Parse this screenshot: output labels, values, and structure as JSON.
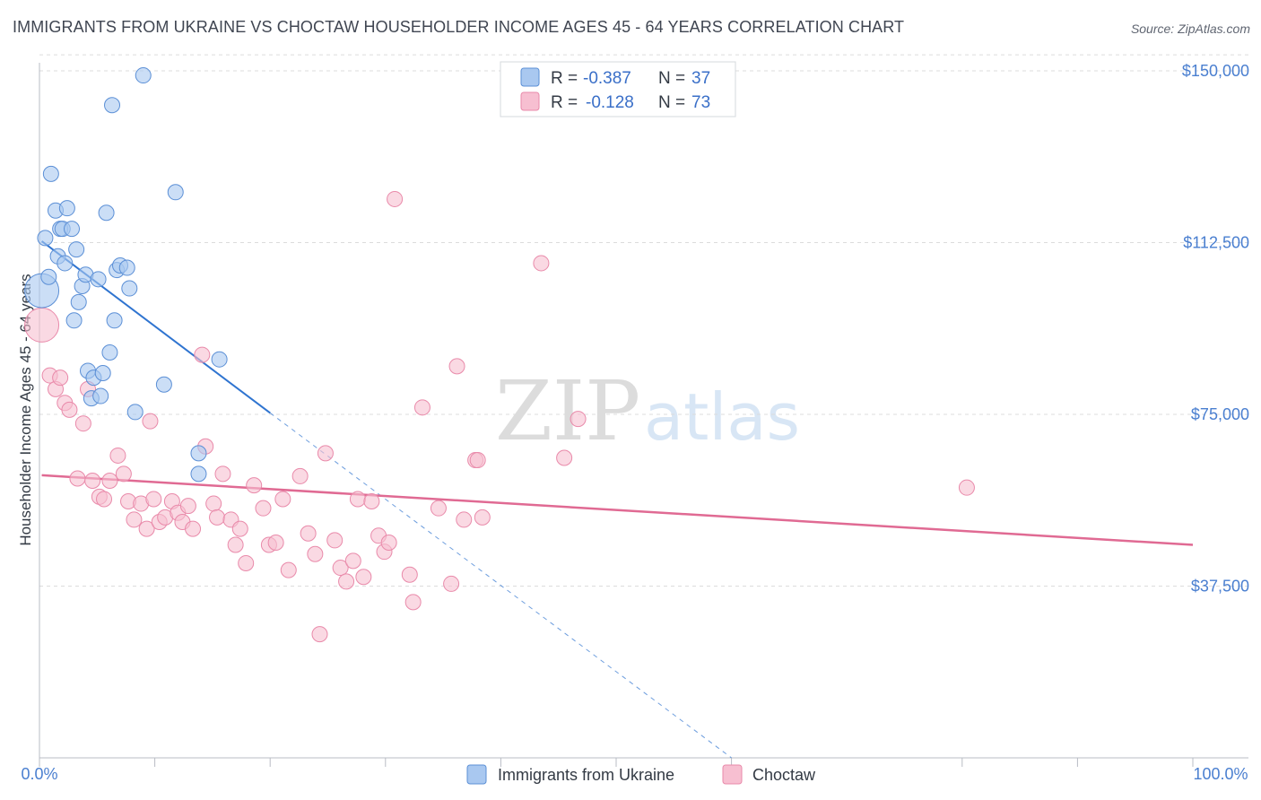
{
  "header": {
    "title": "IMMIGRANTS FROM UKRAINE VS CHOCTAW HOUSEHOLDER INCOME AGES 45 - 64 YEARS CORRELATION CHART",
    "source": "Source: ZipAtlas.com"
  },
  "watermark": {
    "zip": "ZIP",
    "atlas": "atlas"
  },
  "legend": {
    "r_label": "R =",
    "n_label": "N =",
    "series1": {
      "r": "-0.387",
      "n": "37"
    },
    "series2": {
      "r": "-0.128",
      "n": "73"
    }
  },
  "colors": {
    "ukraine_fill": "#a9c8f0",
    "ukraine_stroke": "#5b8fd6",
    "ukraine_line": "#2f74d0",
    "choctaw_fill": "#f7bfd1",
    "choctaw_stroke": "#e98aaa",
    "choctaw_line": "#e06a93",
    "grid": "#dcdcdc",
    "axis": "#b8bcc4"
  },
  "chart_data": {
    "type": "scatter",
    "title": "IMMIGRANTS FROM UKRAINE VS CHOCTAW HOUSEHOLDER INCOME AGES 45 - 64 YEARS CORRELATION CHART",
    "xlabel": "",
    "ylabel": "Householder Income Ages 45 - 64 years",
    "xlim": [
      0,
      100
    ],
    "ylim": [
      0,
      157000
    ],
    "x_tick_labels": [
      "0.0%",
      "100.0%"
    ],
    "y_ticks": [
      37500,
      75000,
      112500,
      150000
    ],
    "y_tick_labels": [
      "$37,500",
      "$75,000",
      "$112,500",
      "$150,000"
    ],
    "grid": true,
    "legend_position": "top-center",
    "series": [
      {
        "name": "Immigrants from Ukraine",
        "R": -0.387,
        "N": 37,
        "trend": {
          "x": [
            0.2,
            20
          ],
          "y": [
            112800,
            75300
          ]
        },
        "trend_extension": {
          "x": [
            20,
            60
          ],
          "y": [
            75300,
            0
          ]
        },
        "points": [
          {
            "x": 0.2,
            "y": 102000,
            "big": true
          },
          {
            "x": 0.5,
            "y": 113500
          },
          {
            "x": 0.8,
            "y": 105000
          },
          {
            "x": 1.0,
            "y": 127500
          },
          {
            "x": 1.4,
            "y": 119500
          },
          {
            "x": 1.6,
            "y": 109500
          },
          {
            "x": 1.8,
            "y": 115500
          },
          {
            "x": 2.0,
            "y": 115500
          },
          {
            "x": 2.2,
            "y": 108000
          },
          {
            "x": 2.4,
            "y": 120000
          },
          {
            "x": 2.8,
            "y": 115500
          },
          {
            "x": 3.0,
            "y": 95500
          },
          {
            "x": 3.2,
            "y": 111000
          },
          {
            "x": 3.4,
            "y": 99500
          },
          {
            "x": 3.7,
            "y": 103000
          },
          {
            "x": 4.0,
            "y": 105500
          },
          {
            "x": 4.2,
            "y": 84500
          },
          {
            "x": 4.5,
            "y": 78500
          },
          {
            "x": 4.7,
            "y": 83000
          },
          {
            "x": 5.1,
            "y": 104500
          },
          {
            "x": 5.3,
            "y": 79000
          },
          {
            "x": 5.5,
            "y": 84000
          },
          {
            "x": 5.8,
            "y": 119000
          },
          {
            "x": 6.1,
            "y": 88500
          },
          {
            "x": 6.3,
            "y": 142500
          },
          {
            "x": 6.5,
            "y": 95500
          },
          {
            "x": 6.7,
            "y": 106500
          },
          {
            "x": 7.0,
            "y": 107500
          },
          {
            "x": 7.6,
            "y": 107000
          },
          {
            "x": 7.8,
            "y": 102500
          },
          {
            "x": 8.3,
            "y": 75500
          },
          {
            "x": 9.0,
            "y": 149000
          },
          {
            "x": 10.8,
            "y": 81500
          },
          {
            "x": 11.8,
            "y": 123500
          },
          {
            "x": 13.8,
            "y": 66500
          },
          {
            "x": 13.8,
            "y": 62000
          },
          {
            "x": 15.6,
            "y": 87000
          }
        ]
      },
      {
        "name": "Choctaw",
        "R": -0.128,
        "N": 73,
        "trend": {
          "x": [
            0.2,
            100
          ],
          "y": [
            61700,
            46500
          ]
        },
        "points": [
          {
            "x": 0.2,
            "y": 94500,
            "big": true
          },
          {
            "x": 0.9,
            "y": 83500
          },
          {
            "x": 1.4,
            "y": 80500
          },
          {
            "x": 1.8,
            "y": 83000
          },
          {
            "x": 2.2,
            "y": 77500
          },
          {
            "x": 2.6,
            "y": 76000
          },
          {
            "x": 3.3,
            "y": 61000
          },
          {
            "x": 3.8,
            "y": 73000
          },
          {
            "x": 4.2,
            "y": 80500
          },
          {
            "x": 4.6,
            "y": 60500
          },
          {
            "x": 5.2,
            "y": 57000
          },
          {
            "x": 5.6,
            "y": 56500
          },
          {
            "x": 6.1,
            "y": 60500
          },
          {
            "x": 6.8,
            "y": 66000
          },
          {
            "x": 7.3,
            "y": 62000
          },
          {
            "x": 7.7,
            "y": 56000
          },
          {
            "x": 8.2,
            "y": 52000
          },
          {
            "x": 8.8,
            "y": 55500
          },
          {
            "x": 9.3,
            "y": 50000
          },
          {
            "x": 9.6,
            "y": 73500
          },
          {
            "x": 9.9,
            "y": 56500
          },
          {
            "x": 10.4,
            "y": 51500
          },
          {
            "x": 10.9,
            "y": 52500
          },
          {
            "x": 11.5,
            "y": 56000
          },
          {
            "x": 12.0,
            "y": 53500
          },
          {
            "x": 12.4,
            "y": 51500
          },
          {
            "x": 12.9,
            "y": 55000
          },
          {
            "x": 13.3,
            "y": 50000
          },
          {
            "x": 14.1,
            "y": 88000
          },
          {
            "x": 14.4,
            "y": 68000
          },
          {
            "x": 15.1,
            "y": 55500
          },
          {
            "x": 15.4,
            "y": 52500
          },
          {
            "x": 15.9,
            "y": 62000
          },
          {
            "x": 16.6,
            "y": 52000
          },
          {
            "x": 17.0,
            "y": 46500
          },
          {
            "x": 17.4,
            "y": 50000
          },
          {
            "x": 17.9,
            "y": 42500
          },
          {
            "x": 18.6,
            "y": 59500
          },
          {
            "x": 19.4,
            "y": 54500
          },
          {
            "x": 19.9,
            "y": 46500
          },
          {
            "x": 20.5,
            "y": 47000
          },
          {
            "x": 21.1,
            "y": 56500
          },
          {
            "x": 21.6,
            "y": 41000
          },
          {
            "x": 22.6,
            "y": 61500
          },
          {
            "x": 23.3,
            "y": 49000
          },
          {
            "x": 23.9,
            "y": 44500
          },
          {
            "x": 24.3,
            "y": 27000
          },
          {
            "x": 24.8,
            "y": 66500
          },
          {
            "x": 25.6,
            "y": 47500
          },
          {
            "x": 26.1,
            "y": 41500
          },
          {
            "x": 26.6,
            "y": 38500
          },
          {
            "x": 27.2,
            "y": 43000
          },
          {
            "x": 27.6,
            "y": 56500
          },
          {
            "x": 28.1,
            "y": 39500
          },
          {
            "x": 28.8,
            "y": 56000
          },
          {
            "x": 29.4,
            "y": 48500
          },
          {
            "x": 29.9,
            "y": 45000
          },
          {
            "x": 30.3,
            "y": 47000
          },
          {
            "x": 30.8,
            "y": 122000
          },
          {
            "x": 32.1,
            "y": 40000
          },
          {
            "x": 32.4,
            "y": 34000
          },
          {
            "x": 33.2,
            "y": 76500
          },
          {
            "x": 34.6,
            "y": 54500
          },
          {
            "x": 35.7,
            "y": 38000
          },
          {
            "x": 36.2,
            "y": 85500
          },
          {
            "x": 36.8,
            "y": 52000
          },
          {
            "x": 37.8,
            "y": 65000
          },
          {
            "x": 38.4,
            "y": 52500
          },
          {
            "x": 43.5,
            "y": 108000
          },
          {
            "x": 45.5,
            "y": 65500
          },
          {
            "x": 46.7,
            "y": 74000
          },
          {
            "x": 80.4,
            "y": 59000
          },
          {
            "x": 38.0,
            "y": 65000
          }
        ]
      }
    ]
  }
}
